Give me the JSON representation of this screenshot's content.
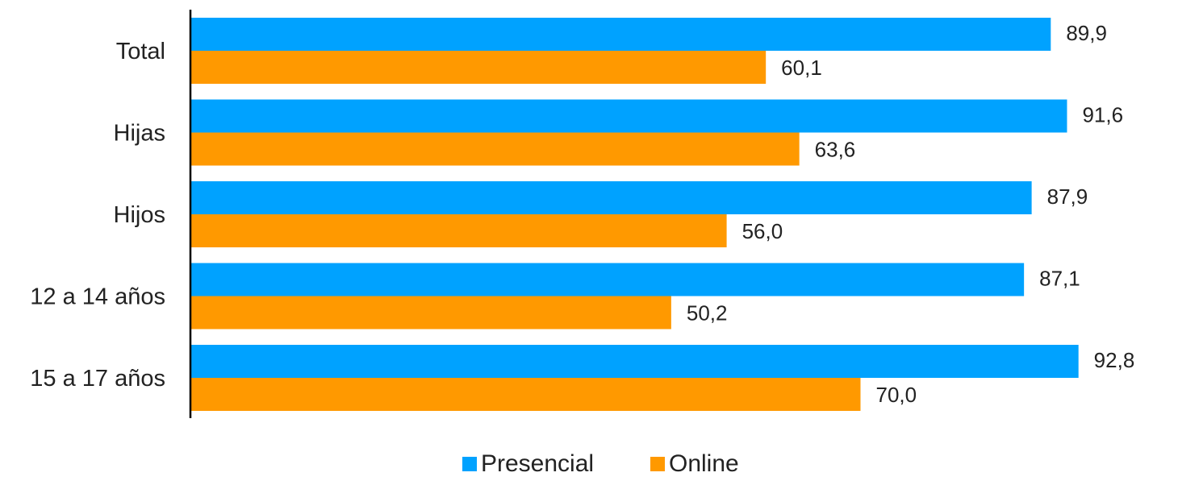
{
  "chart_data": {
    "type": "bar",
    "orientation": "horizontal",
    "categories": [
      "Total",
      "Hijas",
      "Hijos",
      "12 a 14 años",
      "15 a 17 años"
    ],
    "series": [
      {
        "name": "Presencial",
        "color": "#00A2FF",
        "values": [
          89.9,
          91.6,
          87.9,
          87.1,
          92.8
        ],
        "labels": [
          "89,9",
          "91,6",
          "87,9",
          "87,1",
          "92,8"
        ]
      },
      {
        "name": "Online",
        "color": "#FF9900",
        "values": [
          60.1,
          63.6,
          56.0,
          50.2,
          70.0
        ],
        "labels": [
          "60,1",
          "63,6",
          "56,0",
          "50,2",
          "70,0"
        ]
      }
    ],
    "xlim": [
      0,
      100
    ],
    "grid": false,
    "legend_position": "bottom"
  }
}
